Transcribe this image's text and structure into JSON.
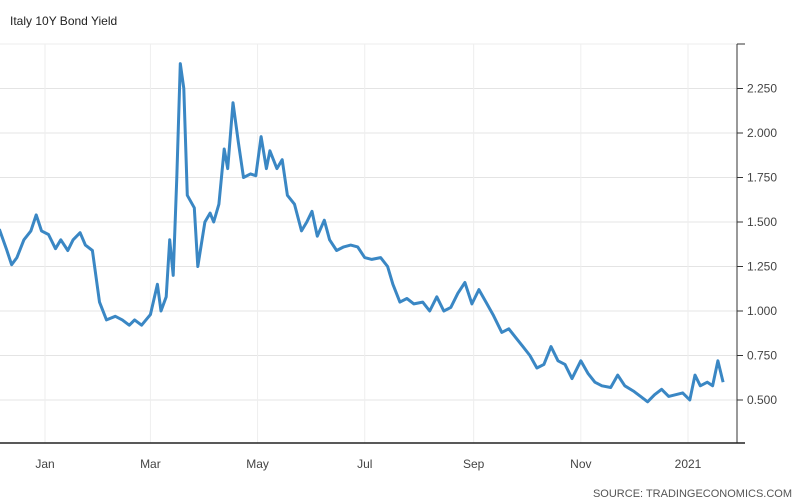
{
  "chart_data": {
    "type": "line",
    "title": "Italy 10Y Bond Yield",
    "source": "SOURCE: TRADINGECONOMICS.COM",
    "ylim": [
      0.25,
      2.5
    ],
    "yticks": [
      "0.500",
      "0.750",
      "1.000",
      "1.250",
      "1.500",
      "1.750",
      "2.000",
      "2.250"
    ],
    "xlim": [
      "2019-12-06",
      "2021-01-28"
    ],
    "xticks": [
      {
        "label": "Jan",
        "date": "2020-01-01"
      },
      {
        "label": "Mar",
        "date": "2020-03-01"
      },
      {
        "label": "May",
        "date": "2020-05-01"
      },
      {
        "label": "Jul",
        "date": "2020-07-01"
      },
      {
        "label": "Sep",
        "date": "2020-09-01"
      },
      {
        "label": "Nov",
        "date": "2020-11-01"
      },
      {
        "label": "2021",
        "date": "2021-01-01"
      }
    ],
    "grid": true,
    "color": "#3a87c4",
    "series": [
      {
        "x": [
          "2019-12-06",
          "2019-12-10",
          "2019-12-13",
          "2019-12-16",
          "2019-12-20",
          "2019-12-24",
          "2019-12-27",
          "2019-12-30",
          "2020-01-03",
          "2020-01-07",
          "2020-01-10",
          "2020-01-14",
          "2020-01-17",
          "2020-01-21",
          "2020-01-24",
          "2020-01-28",
          "2020-02-01",
          "2020-02-05",
          "2020-02-10",
          "2020-02-14",
          "2020-02-18",
          "2020-02-21",
          "2020-02-25",
          "2020-03-01",
          "2020-03-05",
          "2020-03-07",
          "2020-03-10",
          "2020-03-12",
          "2020-03-14",
          "2020-03-16",
          "2020-03-18",
          "2020-03-20",
          "2020-03-22",
          "2020-03-26",
          "2020-03-28",
          "2020-04-01",
          "2020-04-04",
          "2020-04-06",
          "2020-04-09",
          "2020-04-12",
          "2020-04-14",
          "2020-04-17",
          "2020-04-20",
          "2020-04-23",
          "2020-04-27",
          "2020-04-30",
          "2020-05-03",
          "2020-05-06",
          "2020-05-08",
          "2020-05-12",
          "2020-05-15",
          "2020-05-18",
          "2020-05-22",
          "2020-05-26",
          "2020-05-29",
          "2020-06-01",
          "2020-06-04",
          "2020-06-08",
          "2020-06-11",
          "2020-06-15",
          "2020-06-19",
          "2020-06-23",
          "2020-06-27",
          "2020-07-01",
          "2020-07-05",
          "2020-07-10",
          "2020-07-14",
          "2020-07-17",
          "2020-07-21",
          "2020-07-25",
          "2020-07-29",
          "2020-08-03",
          "2020-08-07",
          "2020-08-11",
          "2020-08-15",
          "2020-08-19",
          "2020-08-23",
          "2020-08-27",
          "2020-08-31",
          "2020-09-04",
          "2020-09-08",
          "2020-09-12",
          "2020-09-17",
          "2020-09-21",
          "2020-09-25",
          "2020-09-29",
          "2020-10-03",
          "2020-10-07",
          "2020-10-11",
          "2020-10-15",
          "2020-10-19",
          "2020-10-23",
          "2020-10-27",
          "2020-11-01",
          "2020-11-05",
          "2020-11-09",
          "2020-11-13",
          "2020-11-18",
          "2020-11-22",
          "2020-11-26",
          "2020-12-01",
          "2020-12-05",
          "2020-12-09",
          "2020-12-13",
          "2020-12-17",
          "2020-12-21",
          "2020-12-25",
          "2020-12-29",
          "2021-01-02",
          "2021-01-05",
          "2021-01-08",
          "2021-01-12",
          "2021-01-15",
          "2021-01-18",
          "2021-01-21"
        ],
        "y": [
          1.46,
          1.35,
          1.26,
          1.3,
          1.4,
          1.45,
          1.54,
          1.45,
          1.43,
          1.35,
          1.4,
          1.34,
          1.4,
          1.44,
          1.37,
          1.34,
          1.05,
          0.95,
          0.97,
          0.95,
          0.92,
          0.95,
          0.92,
          0.98,
          1.15,
          1.0,
          1.08,
          1.4,
          1.2,
          1.75,
          2.39,
          2.25,
          1.65,
          1.58,
          1.25,
          1.5,
          1.55,
          1.5,
          1.6,
          1.91,
          1.8,
          2.17,
          1.95,
          1.75,
          1.77,
          1.76,
          1.98,
          1.8,
          1.9,
          1.8,
          1.85,
          1.65,
          1.6,
          1.45,
          1.5,
          1.56,
          1.42,
          1.51,
          1.4,
          1.34,
          1.36,
          1.37,
          1.36,
          1.3,
          1.29,
          1.3,
          1.25,
          1.15,
          1.05,
          1.07,
          1.04,
          1.05,
          1.0,
          1.08,
          1.0,
          1.02,
          1.1,
          1.16,
          1.04,
          1.12,
          1.05,
          0.98,
          0.88,
          0.9,
          0.85,
          0.8,
          0.75,
          0.68,
          0.7,
          0.8,
          0.72,
          0.7,
          0.62,
          0.72,
          0.65,
          0.6,
          0.58,
          0.57,
          0.64,
          0.58,
          0.55,
          0.52,
          0.49,
          0.53,
          0.56,
          0.52,
          0.53,
          0.54,
          0.5,
          0.64,
          0.58,
          0.6,
          0.58,
          0.72,
          0.6
        ]
      }
    ]
  }
}
